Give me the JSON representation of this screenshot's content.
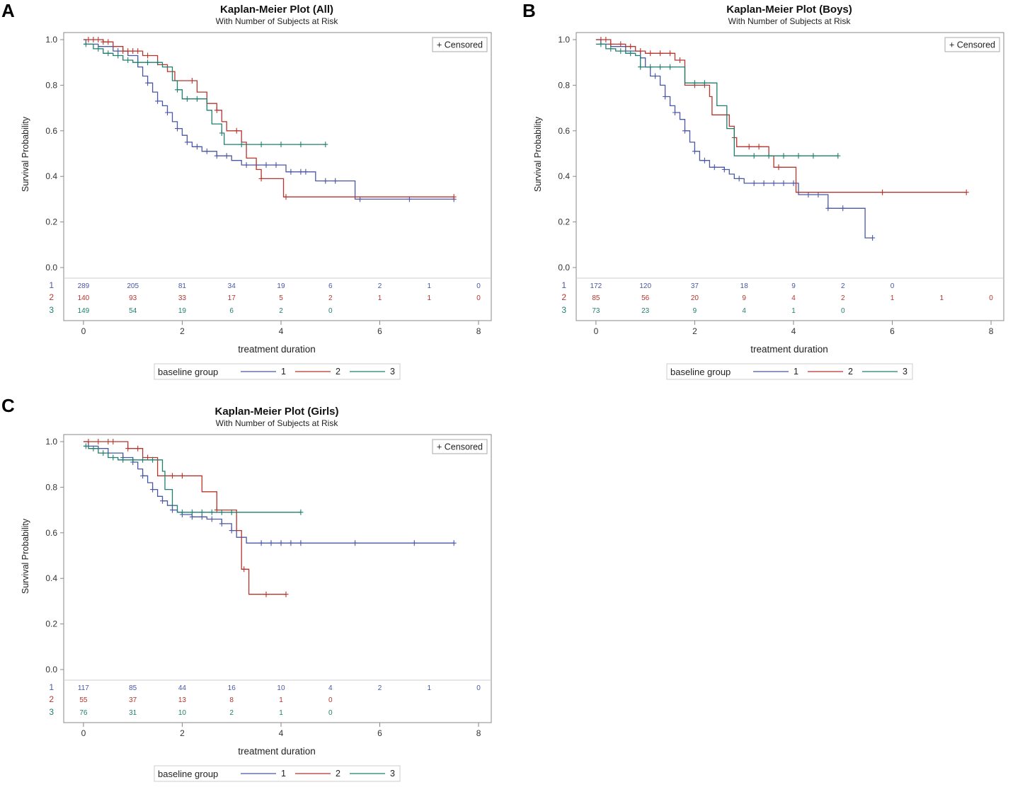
{
  "panels": [
    {
      "letter": "A"
    },
    {
      "letter": "B"
    },
    {
      "letter": "C"
    }
  ],
  "colors": {
    "g1": "#4a57a6",
    "g2": "#b8342c",
    "g3": "#1e7f6e",
    "axis": "#888888",
    "text": "#333333"
  },
  "chart_data": [
    {
      "type": "line",
      "title": "Kaplan-Meier Plot (All)",
      "subtitle": "With Number of Subjects at Risk",
      "xlabel": "treatment duration",
      "ylabel": "Survival Probability",
      "xlim": [
        -0.4,
        8.2
      ],
      "ylim": [
        0,
        1.04
      ],
      "xticks": [
        "0",
        "2",
        "4",
        "6",
        "8"
      ],
      "yticks": [
        "0.0",
        "0.2",
        "0.4",
        "0.6",
        "0.8",
        "1.0"
      ],
      "censored_label": "+ Censored",
      "legend_title": "baseline group",
      "legend_placement": "bottom",
      "risk_times": [
        0,
        1,
        2,
        3,
        4,
        5,
        6,
        7,
        8
      ],
      "series": [
        {
          "name": "1",
          "color": "#4a57a6",
          "risk": [
            "289",
            "205",
            "81",
            "34",
            "19",
            "6",
            "2",
            "1",
            "0"
          ],
          "steps": [
            [
              0,
              1.0
            ],
            [
              0.05,
              0.98
            ],
            [
              0.3,
              0.97
            ],
            [
              0.6,
              0.95
            ],
            [
              0.9,
              0.93
            ],
            [
              1.1,
              0.88
            ],
            [
              1.2,
              0.84
            ],
            [
              1.3,
              0.81
            ],
            [
              1.4,
              0.77
            ],
            [
              1.5,
              0.73
            ],
            [
              1.6,
              0.71
            ],
            [
              1.7,
              0.68
            ],
            [
              1.8,
              0.64
            ],
            [
              1.9,
              0.61
            ],
            [
              2.0,
              0.58
            ],
            [
              2.1,
              0.55
            ],
            [
              2.2,
              0.53
            ],
            [
              2.4,
              0.51
            ],
            [
              2.7,
              0.49
            ],
            [
              3.0,
              0.47
            ],
            [
              3.2,
              0.45
            ],
            [
              4.1,
              0.42
            ],
            [
              4.7,
              0.38
            ],
            [
              5.5,
              0.3
            ],
            [
              7.5,
              0.3
            ]
          ],
          "censor_x": [
            0.7,
            1.3,
            1.5,
            1.7,
            1.9,
            2.1,
            2.3,
            2.5,
            2.7,
            2.9,
            3.3,
            3.5,
            3.7,
            3.9,
            4.2,
            4.4,
            4.5,
            4.9,
            5.1,
            5.6,
            6.6,
            7.5
          ]
        },
        {
          "name": "2",
          "color": "#b8342c",
          "risk": [
            "140",
            "93",
            "33",
            "17",
            "5",
            "2",
            "1",
            "1",
            "0"
          ],
          "steps": [
            [
              0,
              1.0
            ],
            [
              0.4,
              0.99
            ],
            [
              0.6,
              0.97
            ],
            [
              0.8,
              0.95
            ],
            [
              1.2,
              0.93
            ],
            [
              1.5,
              0.89
            ],
            [
              1.7,
              0.86
            ],
            [
              1.85,
              0.82
            ],
            [
              2.3,
              0.77
            ],
            [
              2.5,
              0.72
            ],
            [
              2.7,
              0.69
            ],
            [
              2.8,
              0.64
            ],
            [
              2.9,
              0.6
            ],
            [
              3.2,
              0.55
            ],
            [
              3.3,
              0.48
            ],
            [
              3.5,
              0.43
            ],
            [
              3.6,
              0.39
            ],
            [
              4.0,
              0.39
            ],
            [
              4.05,
              0.31
            ],
            [
              7.5,
              0.31
            ]
          ],
          "censor_x": [
            0.1,
            0.2,
            0.3,
            0.4,
            0.5,
            0.8,
            0.9,
            1.0,
            1.1,
            1.3,
            2.2,
            2.7,
            3.1,
            3.6,
            4.1,
            7.5
          ]
        },
        {
          "name": "3",
          "color": "#1e7f6e",
          "risk": [
            "149",
            "54",
            "19",
            "6",
            "2",
            "0"
          ],
          "steps": [
            [
              0,
              0.98
            ],
            [
              0.2,
              0.96
            ],
            [
              0.4,
              0.94
            ],
            [
              0.6,
              0.93
            ],
            [
              0.8,
              0.91
            ],
            [
              1.0,
              0.9
            ],
            [
              1.6,
              0.88
            ],
            [
              1.8,
              0.82
            ],
            [
              1.9,
              0.78
            ],
            [
              2.0,
              0.74
            ],
            [
              2.5,
              0.69
            ],
            [
              2.6,
              0.63
            ],
            [
              2.8,
              0.59
            ],
            [
              2.85,
              0.54
            ],
            [
              4.9,
              0.54
            ]
          ],
          "censor_x": [
            0.05,
            0.3,
            0.5,
            0.7,
            0.9,
            1.1,
            1.3,
            1.5,
            1.9,
            2.1,
            2.3,
            2.8,
            3.2,
            3.6,
            4.0,
            4.4,
            4.9
          ]
        }
      ]
    },
    {
      "type": "line",
      "title": "Kaplan-Meier Plot (Boys)",
      "subtitle": "With Number of Subjects at Risk",
      "xlabel": "treatment duration",
      "ylabel": "Survival Probability",
      "xlim": [
        -0.4,
        8.2
      ],
      "ylim": [
        0,
        1.04
      ],
      "xticks": [
        "0",
        "2",
        "4",
        "6",
        "8"
      ],
      "yticks": [
        "0.0",
        "0.2",
        "0.4",
        "0.6",
        "0.8",
        "1.0"
      ],
      "censored_label": "+ Censored",
      "legend_title": "baseline group",
      "legend_placement": "bottom",
      "risk_times": [
        0,
        1,
        2,
        3,
        4,
        5,
        6,
        7,
        8
      ],
      "series": [
        {
          "name": "1",
          "color": "#4a57a6",
          "risk": [
            "172",
            "120",
            "37",
            "18",
            "9",
            "2",
            "0"
          ],
          "steps": [
            [
              0,
              1.0
            ],
            [
              0.1,
              0.98
            ],
            [
              0.3,
              0.97
            ],
            [
              0.6,
              0.95
            ],
            [
              0.9,
              0.92
            ],
            [
              1.0,
              0.88
            ],
            [
              1.1,
              0.84
            ],
            [
              1.3,
              0.8
            ],
            [
              1.4,
              0.75
            ],
            [
              1.5,
              0.71
            ],
            [
              1.6,
              0.68
            ],
            [
              1.7,
              0.65
            ],
            [
              1.8,
              0.6
            ],
            [
              1.9,
              0.55
            ],
            [
              2.0,
              0.51
            ],
            [
              2.1,
              0.47
            ],
            [
              2.3,
              0.44
            ],
            [
              2.6,
              0.43
            ],
            [
              2.7,
              0.41
            ],
            [
              2.8,
              0.39
            ],
            [
              3.0,
              0.37
            ],
            [
              4.1,
              0.32
            ],
            [
              4.7,
              0.26
            ],
            [
              5.4,
              0.26
            ],
            [
              5.45,
              0.13
            ],
            [
              5.6,
              0.13
            ]
          ],
          "censor_x": [
            1.2,
            1.4,
            1.6,
            1.8,
            2.0,
            2.2,
            2.4,
            2.6,
            2.9,
            3.2,
            3.4,
            3.6,
            3.8,
            4.0,
            4.3,
            4.5,
            4.7,
            5.0,
            5.6
          ]
        },
        {
          "name": "2",
          "color": "#b8342c",
          "risk": [
            "85",
            "56",
            "20",
            "9",
            "4",
            "2",
            "1",
            "1",
            "0"
          ],
          "steps": [
            [
              0,
              1.0
            ],
            [
              0.3,
              0.98
            ],
            [
              0.6,
              0.97
            ],
            [
              0.8,
              0.95
            ],
            [
              1.0,
              0.94
            ],
            [
              1.6,
              0.91
            ],
            [
              1.8,
              0.87
            ],
            [
              1.8,
              0.8
            ],
            [
              2.3,
              0.75
            ],
            [
              2.35,
              0.67
            ],
            [
              2.7,
              0.62
            ],
            [
              2.8,
              0.57
            ],
            [
              2.85,
              0.53
            ],
            [
              3.5,
              0.49
            ],
            [
              3.6,
              0.44
            ],
            [
              4.0,
              0.44
            ],
            [
              4.05,
              0.33
            ],
            [
              7.5,
              0.33
            ]
          ],
          "censor_x": [
            0.1,
            0.2,
            0.3,
            0.5,
            0.7,
            0.9,
            1.1,
            1.3,
            1.5,
            1.7,
            2.0,
            2.2,
            2.8,
            3.1,
            3.3,
            3.7,
            5.8,
            7.5
          ]
        },
        {
          "name": "3",
          "color": "#1e7f6e",
          "risk": [
            "73",
            "23",
            "9",
            "4",
            "1",
            "0"
          ],
          "steps": [
            [
              0,
              0.98
            ],
            [
              0.2,
              0.96
            ],
            [
              0.4,
              0.95
            ],
            [
              0.6,
              0.94
            ],
            [
              0.8,
              0.93
            ],
            [
              0.9,
              0.88
            ],
            [
              1.7,
              0.88
            ],
            [
              1.8,
              0.81
            ],
            [
              2.4,
              0.81
            ],
            [
              2.45,
              0.71
            ],
            [
              2.6,
              0.71
            ],
            [
              2.65,
              0.61
            ],
            [
              2.75,
              0.61
            ],
            [
              2.8,
              0.49
            ],
            [
              4.9,
              0.49
            ]
          ],
          "censor_x": [
            0.1,
            0.3,
            0.5,
            0.7,
            0.9,
            1.1,
            1.3,
            1.5,
            2.0,
            2.2,
            3.2,
            3.5,
            3.8,
            4.1,
            4.4,
            4.9
          ]
        }
      ]
    },
    {
      "type": "line",
      "title": "Kaplan-Meier Plot (Girls)",
      "subtitle": "With Number of Subjects at Risk",
      "xlabel": "treatment duration",
      "ylabel": "Survival Probability",
      "xlim": [
        -0.4,
        8.2
      ],
      "ylim": [
        0,
        1.04
      ],
      "xticks": [
        "0",
        "2",
        "4",
        "6",
        "8"
      ],
      "yticks": [
        "0.0",
        "0.2",
        "0.4",
        "0.6",
        "0.8",
        "1.0"
      ],
      "censored_label": "+ Censored",
      "legend_title": "baseline group",
      "legend_placement": "bottom",
      "risk_times": [
        0,
        1,
        2,
        3,
        4,
        5,
        6,
        7,
        8
      ],
      "series": [
        {
          "name": "1",
          "color": "#4a57a6",
          "risk": [
            "117",
            "85",
            "44",
            "16",
            "10",
            "4",
            "2",
            "1",
            "0"
          ],
          "steps": [
            [
              0,
              1.0
            ],
            [
              0.1,
              0.98
            ],
            [
              0.3,
              0.97
            ],
            [
              0.5,
              0.95
            ],
            [
              0.8,
              0.93
            ],
            [
              1.0,
              0.91
            ],
            [
              1.1,
              0.88
            ],
            [
              1.2,
              0.85
            ],
            [
              1.3,
              0.82
            ],
            [
              1.4,
              0.79
            ],
            [
              1.5,
              0.76
            ],
            [
              1.6,
              0.74
            ],
            [
              1.7,
              0.72
            ],
            [
              1.8,
              0.7
            ],
            [
              1.9,
              0.69
            ],
            [
              2.0,
              0.68
            ],
            [
              2.2,
              0.67
            ],
            [
              2.5,
              0.66
            ],
            [
              2.8,
              0.64
            ],
            [
              3.0,
              0.61
            ],
            [
              3.1,
              0.58
            ],
            [
              3.3,
              0.555
            ],
            [
              7.5,
              0.555
            ]
          ],
          "censor_x": [
            0.8,
            1.0,
            1.2,
            1.4,
            1.6,
            1.8,
            2.0,
            2.2,
            2.4,
            2.6,
            2.8,
            3.0,
            3.6,
            3.8,
            4.0,
            4.2,
            4.4,
            5.5,
            6.7,
            7.5
          ]
        },
        {
          "name": "2",
          "color": "#b8342c",
          "risk": [
            "55",
            "37",
            "13",
            "8",
            "1",
            "0"
          ],
          "steps": [
            [
              0,
              1.0
            ],
            [
              0.9,
              0.97
            ],
            [
              1.2,
              0.93
            ],
            [
              1.5,
              0.85
            ],
            [
              2.4,
              0.78
            ],
            [
              2.7,
              0.7
            ],
            [
              3.1,
              0.61
            ],
            [
              3.2,
              0.44
            ],
            [
              3.35,
              0.33
            ],
            [
              4.1,
              0.33
            ]
          ],
          "censor_x": [
            0.1,
            0.3,
            0.5,
            0.6,
            0.9,
            1.1,
            1.3,
            1.8,
            2.0,
            2.7,
            3.25,
            3.7,
            4.1
          ]
        },
        {
          "name": "3",
          "color": "#1e7f6e",
          "risk": [
            "76",
            "31",
            "10",
            "2",
            "1",
            "0"
          ],
          "steps": [
            [
              0,
              0.98
            ],
            [
              0.1,
              0.97
            ],
            [
              0.3,
              0.95
            ],
            [
              0.5,
              0.93
            ],
            [
              0.7,
              0.92
            ],
            [
              1.6,
              0.87
            ],
            [
              1.65,
              0.79
            ],
            [
              1.8,
              0.72
            ],
            [
              1.9,
              0.69
            ],
            [
              4.4,
              0.69
            ]
          ],
          "censor_x": [
            0.05,
            0.2,
            0.4,
            0.6,
            0.8,
            1.0,
            1.2,
            1.4,
            2.0,
            2.2,
            2.4,
            2.6,
            2.8,
            3.0,
            4.4
          ]
        }
      ]
    }
  ]
}
